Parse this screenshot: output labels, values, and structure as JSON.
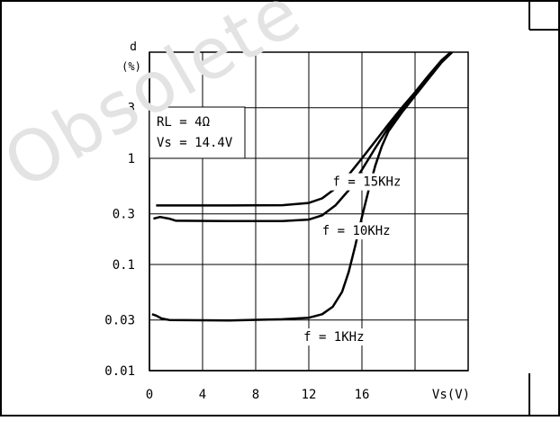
{
  "watermark": "Obsolete",
  "chart_data": {
    "type": "line",
    "title": "",
    "xlabel": "Vs(V)",
    "ylabel": "d",
    "ylabel_unit": "(%)",
    "x_ticks": [
      0,
      4,
      8,
      12,
      16
    ],
    "x_tick_labels": [
      "0",
      "4",
      "8",
      "12",
      "16"
    ],
    "xlim": [
      0,
      24
    ],
    "y_scale": "log",
    "y_ticks": [
      0.01,
      0.03,
      0.1,
      0.3,
      1,
      3
    ],
    "y_tick_labels": [
      "0.01",
      "0.03",
      "0.1",
      "0.3",
      "1",
      "3"
    ],
    "ylim": [
      0.01,
      10
    ],
    "grid": true,
    "conditions": [
      "RL = 4Ω",
      "Vs = 14.4V"
    ],
    "series": [
      {
        "name": "f = 15KHz",
        "points": [
          [
            0.5,
            0.36
          ],
          [
            2,
            0.36
          ],
          [
            6,
            0.36
          ],
          [
            10,
            0.362
          ],
          [
            12,
            0.38
          ],
          [
            13,
            0.42
          ],
          [
            14,
            0.52
          ],
          [
            15,
            0.7
          ],
          [
            16,
            1.0
          ],
          [
            17,
            1.45
          ],
          [
            18,
            2.1
          ],
          [
            19,
            3.0
          ],
          [
            20,
            4.2
          ],
          [
            21,
            6.0
          ],
          [
            22,
            8.4
          ],
          [
            22.7,
            10
          ]
        ]
      },
      {
        "name": "f = 10KHz",
        "points": [
          [
            0.3,
            0.27
          ],
          [
            0.8,
            0.28
          ],
          [
            1.5,
            0.27
          ],
          [
            2,
            0.258
          ],
          [
            6,
            0.256
          ],
          [
            10,
            0.256
          ],
          [
            12,
            0.265
          ],
          [
            13,
            0.29
          ],
          [
            14,
            0.36
          ],
          [
            15,
            0.5
          ],
          [
            16,
            0.78
          ],
          [
            17,
            1.25
          ],
          [
            18,
            1.95
          ],
          [
            19,
            2.9
          ],
          [
            20,
            4.1
          ],
          [
            21,
            5.8
          ],
          [
            22,
            8.3
          ],
          [
            22.7,
            10
          ]
        ]
      },
      {
        "name": "f = 1KHz",
        "points": [
          [
            0.2,
            0.034
          ],
          [
            0.5,
            0.033
          ],
          [
            0.9,
            0.031
          ],
          [
            1.5,
            0.03
          ],
          [
            6,
            0.0297
          ],
          [
            10,
            0.0305
          ],
          [
            12,
            0.0315
          ],
          [
            13,
            0.034
          ],
          [
            13.8,
            0.04
          ],
          [
            14.5,
            0.055
          ],
          [
            15,
            0.085
          ],
          [
            15.5,
            0.15
          ],
          [
            16,
            0.28
          ],
          [
            16.5,
            0.5
          ],
          [
            17,
            0.85
          ],
          [
            17.5,
            1.3
          ],
          [
            18,
            1.8
          ],
          [
            19,
            2.7
          ],
          [
            20,
            3.9
          ],
          [
            21,
            5.6
          ],
          [
            22,
            8.0
          ],
          [
            22.8,
            10
          ]
        ]
      }
    ],
    "annotations": [
      {
        "text": "f = 15KHz",
        "x": 13.8,
        "y": 0.55
      },
      {
        "text": "f = 10KHz",
        "x": 13.0,
        "y": 0.19
      },
      {
        "text": "f = 1KHz",
        "x": 11.6,
        "y": 0.019
      }
    ]
  }
}
